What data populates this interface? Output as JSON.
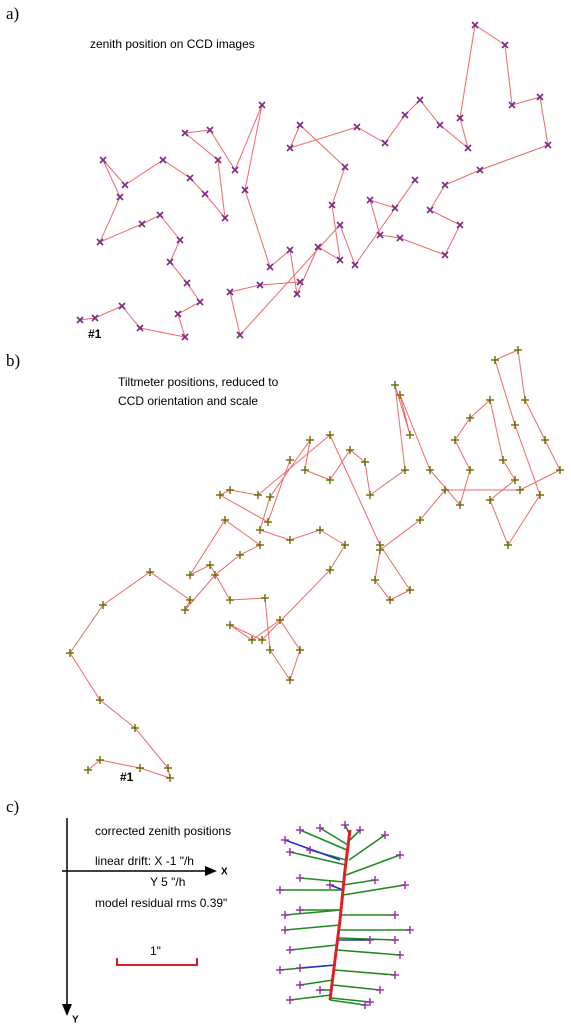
{
  "chart_data": [
    {
      "type": "line",
      "panel_label": "a)",
      "title": "zenith position on CCD images",
      "annotation": "#1",
      "marker": "x",
      "line_color": "#f06868",
      "marker_color": "#7a2a86",
      "xlim": [
        0,
        571
      ],
      "ylim": [
        345,
        0
      ],
      "series": [
        {
          "x": [
            80,
            95,
            122,
            140,
            185,
            178,
            200,
            187,
            170,
            180,
            160,
            142,
            100,
            120,
            103,
            125,
            163,
            190,
            205,
            225,
            218,
            185,
            210,
            235,
            262,
            245,
            270,
            290,
            297,
            318,
            340,
            332,
            345,
            300,
            290,
            357,
            385,
            405,
            420,
            440,
            468,
            460,
            475,
            505,
            512,
            540,
            548,
            480,
            445,
            430,
            460,
            445,
            400,
            380,
            370,
            395,
            415,
            355,
            340,
            240,
            230,
            260,
            300
          ],
          "y": [
            320,
            318,
            306,
            328,
            337,
            314,
            302,
            283,
            262,
            240,
            215,
            224,
            242,
            197,
            160,
            185,
            160,
            178,
            194,
            218,
            160,
            133,
            130,
            170,
            105,
            190,
            267,
            250,
            294,
            247,
            260,
            205,
            167,
            125,
            148,
            127,
            143,
            115,
            100,
            125,
            148,
            118,
            25,
            45,
            105,
            97,
            145,
            170,
            185,
            210,
            225,
            255,
            238,
            235,
            200,
            208,
            180,
            265,
            225,
            335,
            292,
            285,
            282
          ]
        }
      ]
    },
    {
      "type": "line",
      "panel_label": "b)",
      "title": [
        "Tiltmeter positions, reduced to",
        "CCD orientation and scale"
      ],
      "annotation": "#1",
      "marker": "+",
      "line_color": "#f06868",
      "marker_color": "#6b6a00",
      "xlim": [
        0,
        571
      ],
      "ylim": [
        445,
        0
      ],
      "series": [
        {
          "x": [
            88,
            100,
            140,
            170,
            168,
            135,
            100,
            70,
            103,
            150,
            190,
            185,
            215,
            240,
            260,
            225,
            190,
            210,
            230,
            265,
            270,
            290,
            300,
            280,
            252,
            230,
            262,
            330,
            345,
            320,
            290,
            260,
            270,
            310,
            305,
            330,
            350,
            365,
            370,
            405,
            395,
            410,
            400,
            430,
            460,
            470,
            455,
            470,
            490,
            503,
            515,
            490,
            508,
            540,
            515,
            495,
            518,
            525,
            545,
            560,
            520,
            445,
            420,
            380,
            375,
            390,
            410,
            380,
            330,
            258,
            230,
            220,
            268,
            290
          ],
          "y": [
            425,
            415,
            423,
            433,
            423,
            383,
            355,
            308,
            260,
            227,
            255,
            265,
            230,
            210,
            200,
            175,
            230,
            220,
            255,
            253,
            305,
            335,
            305,
            275,
            295,
            280,
            295,
            225,
            200,
            185,
            195,
            185,
            152,
            95,
            125,
            135,
            105,
            117,
            150,
            125,
            40,
            90,
            50,
            125,
            160,
            125,
            95,
            73,
            55,
            115,
            135,
            155,
            200,
            150,
            80,
            15,
            5,
            55,
            95,
            125,
            145,
            145,
            175,
            205,
            235,
            255,
            245,
            200,
            90,
            150,
            145,
            150,
            177,
            115
          ]
        }
      ]
    },
    {
      "type": "vector",
      "panel_label": "c)",
      "title": "corrected zenith positions",
      "annotations": [
        "linear drift: X -1 \"/h",
        "Y  5 \"/h",
        "model residual rms 0.39\""
      ],
      "x_label": "X",
      "y_label": "Y",
      "scale_label": "1\"",
      "xlim": [
        0,
        571
      ],
      "ylim": [
        237,
        0
      ],
      "marker_color": "#9a2aa8",
      "model": {
        "color": "#e02020",
        "x": [
          330,
          335,
          340,
          345,
          350
        ],
        "y": [
          210,
          170,
          130,
          80,
          40
        ]
      },
      "series": [
        {
          "color": "#1f8a1f",
          "x": [
            300,
            320,
            360,
            385,
            290,
            400,
            280,
            405,
            300,
            395,
            285,
            410,
            290,
            400,
            280,
            395,
            300,
            380,
            290,
            370,
            310,
            375,
            300,
            395,
            285,
            320,
            345,
            365
          ],
          "y": [
            40,
            38,
            40,
            45,
            62,
            65,
            100,
            95,
            120,
            125,
            140,
            140,
            160,
            165,
            180,
            185,
            195,
            200,
            210,
            212,
            60,
            90,
            88,
            150,
            125,
            200,
            35,
            215
          ],
          "x2": [
            347,
            348,
            350,
            349,
            346,
            346,
            343,
            343,
            341,
            341,
            340,
            339,
            337,
            337,
            335,
            335,
            333,
            333,
            331,
            331,
            346,
            343,
            344,
            338,
            341,
            332,
            350,
            330
          ],
          "y2": [
            60,
            55,
            50,
            70,
            75,
            85,
            100,
            105,
            120,
            125,
            135,
            140,
            155,
            160,
            175,
            180,
            190,
            195,
            205,
            208,
            70,
            95,
            92,
            148,
            120,
            200,
            45,
            210
          ]
        },
        {
          "color": "#2233cc",
          "x": [
            285,
            370,
            330,
            300
          ],
          "y": [
            50,
            150,
            95,
            178
          ],
          "x2": [
            340,
            338,
            343,
            336
          ],
          "y2": [
            70,
            150,
            100,
            175
          ]
        }
      ]
    }
  ]
}
